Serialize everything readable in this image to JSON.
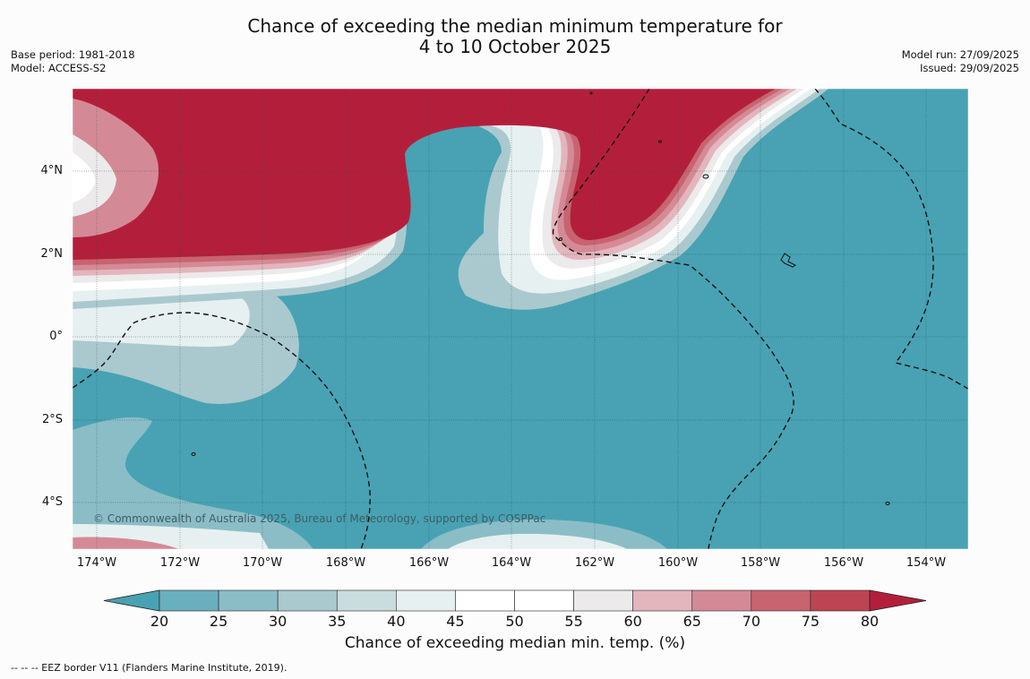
{
  "title": {
    "line1": "Chance of exceeding the median minimum temperature for",
    "line2": "4 to 10 October 2025"
  },
  "meta_left": {
    "base_period": "Base period: 1981-2018",
    "model": "Model: ACCESS-S2"
  },
  "meta_right": {
    "model_run": "Model run: 27/09/2025",
    "issued": "Issued: 29/09/2025"
  },
  "map": {
    "lat_labels": [
      "4°N",
      "2°N",
      "0°",
      "2°S",
      "4°S"
    ],
    "lon_labels": [
      "174°W",
      "172°W",
      "170°W",
      "168°W",
      "166°W",
      "164°W",
      "162°W",
      "160°W",
      "158°W",
      "156°W",
      "154°W"
    ],
    "copyright": "© Commonwealth of Australia 2025, Bureau of Meteorology, supported by COSPPac",
    "colors": {
      "low": "#48a2b3",
      "high": "#b31f3b"
    }
  },
  "colorbar": {
    "ticks": [
      "20",
      "25",
      "30",
      "35",
      "40",
      "45",
      "50",
      "55",
      "60",
      "65",
      "70",
      "75",
      "80"
    ],
    "colors": [
      "#48a2b3",
      "#6aafbd",
      "#8bbdc7",
      "#aac9cf",
      "#c9dcde",
      "#e7f0f0",
      "#ffffff",
      "#ffffff",
      "#eceaeb",
      "#e3b5bc",
      "#d48a96",
      "#c7646f",
      "#bd4553",
      "#b31f3b"
    ],
    "label": "Chance of exceeding median min. temp. (%)"
  },
  "footer": "--  --  -- EEZ border V11 (Flanders Marine Institute, 2019)."
}
